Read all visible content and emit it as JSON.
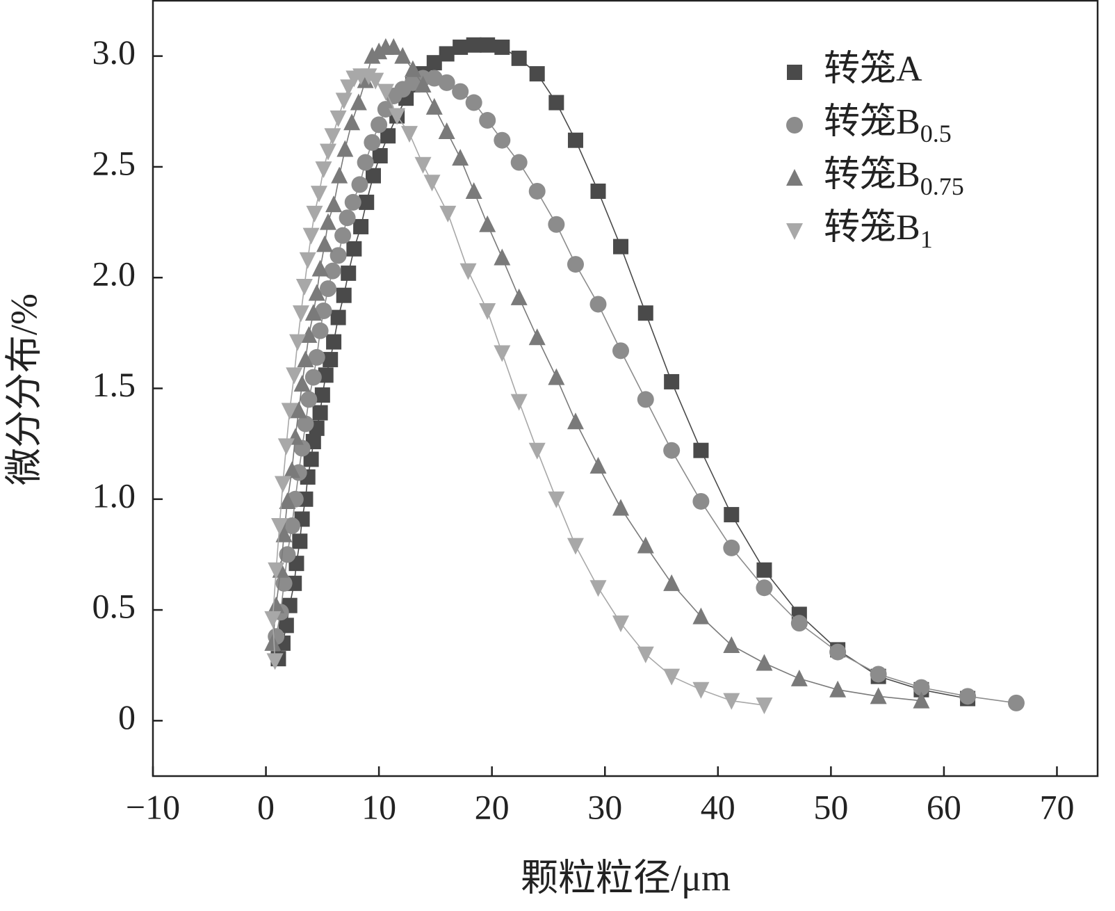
{
  "chart_data": {
    "type": "line",
    "xlabel": "颗粒粒径/μm",
    "ylabel": "微分分布/%",
    "xlim": [
      -10,
      73.6
    ],
    "ylim": [
      -0.25,
      3.25
    ],
    "xticks": [
      {
        "value": -10,
        "label": "−10"
      },
      0,
      10,
      20,
      30,
      40,
      50,
      60,
      70
    ],
    "yticks": [
      0,
      0.5,
      {
        "value": 1.0,
        "label": "1.0"
      },
      1.5,
      {
        "value": 2.0,
        "label": "2.0"
      },
      2.5,
      {
        "value": 3.0,
        "label": "3.0"
      }
    ],
    "grid": false,
    "legend": "upper right",
    "series": [
      {
        "name": "转笼A",
        "color": "#4a4a4a",
        "marker": "square",
        "x": [
          1.1,
          1.5,
          1.8,
          2.1,
          2.5,
          2.7,
          3.0,
          3.2,
          3.5,
          3.7,
          4.0,
          4.2,
          4.5,
          4.8,
          5.0,
          5.3,
          5.7,
          6.0,
          6.4,
          6.9,
          7.3,
          7.8,
          8.4,
          8.9,
          9.5,
          10.1,
          10.8,
          11.6,
          12.4,
          13.0,
          13.9,
          14.9,
          16.0,
          17.2,
          18.4,
          19.6,
          20.9,
          22.4,
          24.0,
          25.7,
          27.4,
          29.4,
          31.4,
          33.6,
          35.9,
          38.5,
          41.2,
          44.1,
          47.2,
          50.6,
          54.2,
          58.0,
          62.1
        ],
        "values": [
          0.28,
          0.35,
          0.43,
          0.52,
          0.62,
          0.71,
          0.81,
          0.91,
          1.0,
          1.1,
          1.18,
          1.26,
          1.32,
          1.39,
          1.47,
          1.56,
          1.63,
          1.71,
          1.82,
          1.92,
          2.02,
          2.13,
          2.23,
          2.34,
          2.46,
          2.55,
          2.64,
          2.73,
          2.81,
          2.87,
          2.92,
          2.97,
          3.01,
          3.04,
          3.05,
          3.05,
          3.04,
          2.99,
          2.92,
          2.79,
          2.62,
          2.39,
          2.14,
          1.84,
          1.53,
          1.22,
          0.93,
          0.68,
          0.48,
          0.32,
          0.2,
          0.14,
          0.1
        ]
      },
      {
        "name": "转笼B0.5",
        "color": "#8c8c8c",
        "marker": "circle",
        "x": [
          0.9,
          1.3,
          1.6,
          1.9,
          2.3,
          2.6,
          2.9,
          3.2,
          3.5,
          3.8,
          4.2,
          4.5,
          4.8,
          5.1,
          5.5,
          5.9,
          6.4,
          6.8,
          7.2,
          7.7,
          8.3,
          8.8,
          9.4,
          10.0,
          10.6,
          11.3,
          12.1,
          13.0,
          13.9,
          14.9,
          16.0,
          17.2,
          18.4,
          19.6,
          20.9,
          22.4,
          24.0,
          25.7,
          27.4,
          29.4,
          31.4,
          33.6,
          35.9,
          38.5,
          41.2,
          44.1,
          47.2,
          50.6,
          54.2,
          58.0,
          62.1,
          66.4
        ],
        "values": [
          0.38,
          0.49,
          0.62,
          0.75,
          0.88,
          1.0,
          1.12,
          1.23,
          1.34,
          1.45,
          1.55,
          1.64,
          1.76,
          1.85,
          1.95,
          2.03,
          2.1,
          2.19,
          2.27,
          2.34,
          2.42,
          2.52,
          2.61,
          2.69,
          2.76,
          2.82,
          2.85,
          2.88,
          2.9,
          2.9,
          2.88,
          2.84,
          2.79,
          2.71,
          2.62,
          2.52,
          2.39,
          2.24,
          2.06,
          1.88,
          1.67,
          1.45,
          1.22,
          0.99,
          0.78,
          0.6,
          0.44,
          0.31,
          0.21,
          0.15,
          0.11,
          0.08
        ]
      },
      {
        "name": "转笼B0.75",
        "color": "#7a7a7a",
        "marker": "triangle-up",
        "x": [
          0.6,
          0.9,
          1.3,
          1.6,
          1.9,
          2.3,
          2.6,
          2.9,
          3.2,
          3.5,
          3.8,
          4.2,
          4.5,
          4.8,
          5.2,
          5.5,
          6.0,
          6.5,
          7.0,
          7.6,
          8.2,
          8.8,
          9.4,
          10.0,
          10.6,
          11.3,
          12.1,
          13.0,
          13.9,
          14.9,
          16.0,
          17.2,
          18.4,
          19.6,
          20.9,
          22.4,
          24.0,
          25.7,
          27.4,
          29.4,
          31.4,
          33.6,
          35.9,
          38.5,
          41.2,
          44.1,
          47.2,
          50.6,
          54.2,
          58.0
        ],
        "values": [
          0.35,
          0.52,
          0.68,
          0.84,
          0.99,
          1.13,
          1.28,
          1.4,
          1.52,
          1.63,
          1.74,
          1.84,
          1.93,
          2.04,
          2.15,
          2.25,
          2.33,
          2.46,
          2.58,
          2.7,
          2.79,
          2.89,
          3.0,
          3.02,
          3.04,
          3.04,
          3.0,
          2.94,
          2.87,
          2.77,
          2.66,
          2.54,
          2.39,
          2.24,
          2.09,
          1.91,
          1.73,
          1.55,
          1.35,
          1.15,
          0.96,
          0.79,
          0.62,
          0.47,
          0.34,
          0.26,
          0.19,
          0.14,
          0.11,
          0.09
        ]
      },
      {
        "name": "转笼B1",
        "color": "#a8a8a8",
        "marker": "triangle-down",
        "x": [
          0.8,
          0.6,
          0.9,
          1.2,
          1.5,
          1.8,
          2.1,
          2.5,
          2.8,
          3.1,
          3.4,
          3.7,
          4.0,
          4.3,
          4.7,
          5.1,
          5.5,
          5.9,
          6.4,
          6.9,
          7.3,
          7.8,
          8.4,
          9.1,
          9.7,
          10.6,
          11.6,
          12.7,
          13.9,
          14.7,
          16.1,
          17.9,
          19.6,
          20.9,
          22.4,
          24.0,
          25.7,
          27.4,
          29.4,
          31.4,
          33.6,
          35.9,
          38.5,
          41.2,
          44.1
        ],
        "values": [
          0.27,
          0.46,
          0.68,
          0.88,
          1.07,
          1.24,
          1.4,
          1.56,
          1.71,
          1.84,
          1.96,
          2.08,
          2.19,
          2.29,
          2.38,
          2.49,
          2.57,
          2.64,
          2.72,
          2.8,
          2.86,
          2.9,
          2.91,
          2.91,
          2.89,
          2.84,
          2.73,
          2.65,
          2.51,
          2.43,
          2.29,
          2.03,
          1.85,
          1.66,
          1.44,
          1.22,
          1.0,
          0.79,
          0.6,
          0.44,
          0.3,
          0.2,
          0.14,
          0.09,
          0.07
        ]
      }
    ]
  }
}
